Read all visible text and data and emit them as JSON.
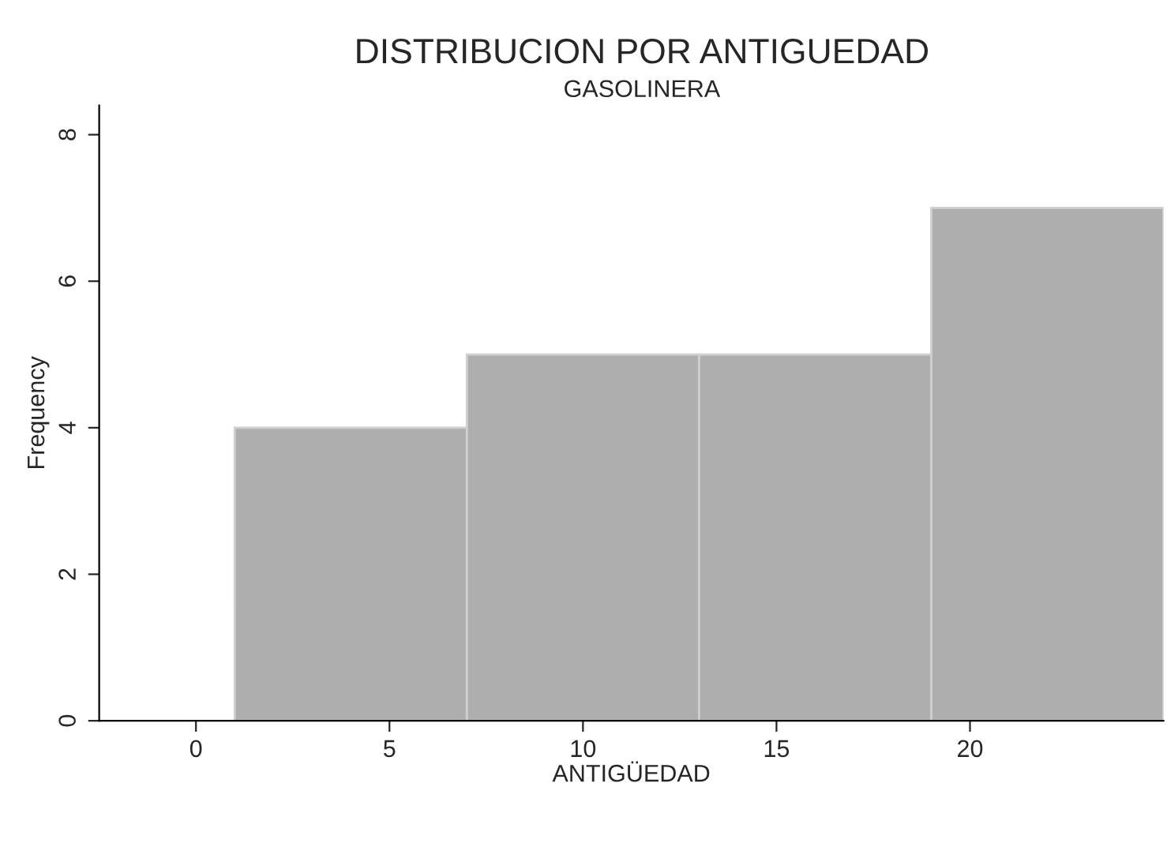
{
  "chart_data": {
    "type": "histogram",
    "title": "DISTRIBUCION POR ANTIGUEDAD",
    "subtitle": "GASOLINERA",
    "xlabel": "ANTIGÜEDAD",
    "ylabel": "Frequency",
    "bins": [
      1,
      7,
      13,
      19,
      25
    ],
    "values": [
      4,
      5,
      5,
      7
    ],
    "color": "#aeaeae",
    "xlim": [
      -2.5,
      25
    ],
    "xticks": [
      0,
      5,
      10,
      15,
      20
    ],
    "ylim": [
      0,
      8.4
    ],
    "yticks": [
      0,
      2,
      4,
      6,
      8
    ],
    "grid": false,
    "legend": false
  }
}
